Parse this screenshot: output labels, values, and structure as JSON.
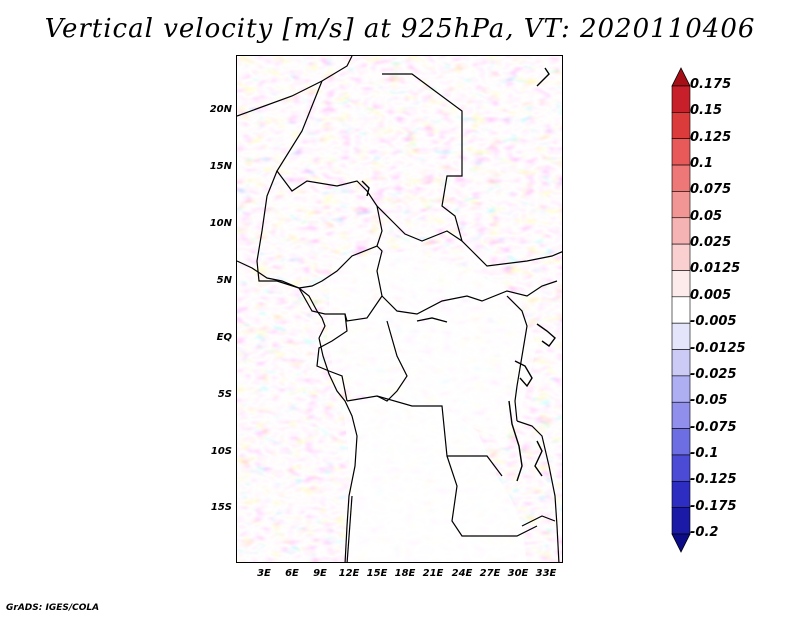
{
  "title": "Vertical velocity [m/s] at 925hPa, VT: 2020110406",
  "footer": "GrADS: IGES/COLA",
  "map": {
    "lat_labels": [
      "20N",
      "15N",
      "10N",
      "5N",
      "EQ",
      "5S",
      "10S",
      "15S"
    ],
    "lon_labels": [
      "3E",
      "6E",
      "9E",
      "12E",
      "15E",
      "18E",
      "21E",
      "24E",
      "27E",
      "30E",
      "33E"
    ],
    "lat_range": [
      -20,
      25
    ],
    "lon_range": [
      0,
      34.5
    ]
  },
  "colorbar": {
    "labels": [
      "0.175",
      "0.15",
      "0.125",
      "0.1",
      "0.075",
      "0.05",
      "0.025",
      "0.0125",
      "0.005",
      "-0.005",
      "-0.0125",
      "-0.025",
      "-0.05",
      "-0.075",
      "-0.1",
      "-0.125",
      "-0.175",
      "-0.2"
    ],
    "colors": [
      "#a50f15",
      "#c8202a",
      "#dc3b3b",
      "#e8595a",
      "#ee7777",
      "#f29595",
      "#f5b3b3",
      "#f9cfcf",
      "#fdeaea",
      "#ffffff",
      "#e4e4fb",
      "#cbcbf6",
      "#aeaef2",
      "#9090ec",
      "#6e6ee3",
      "#4b4bd6",
      "#2d2dc2",
      "#1a1aa6",
      "#0c0c88"
    ]
  }
}
